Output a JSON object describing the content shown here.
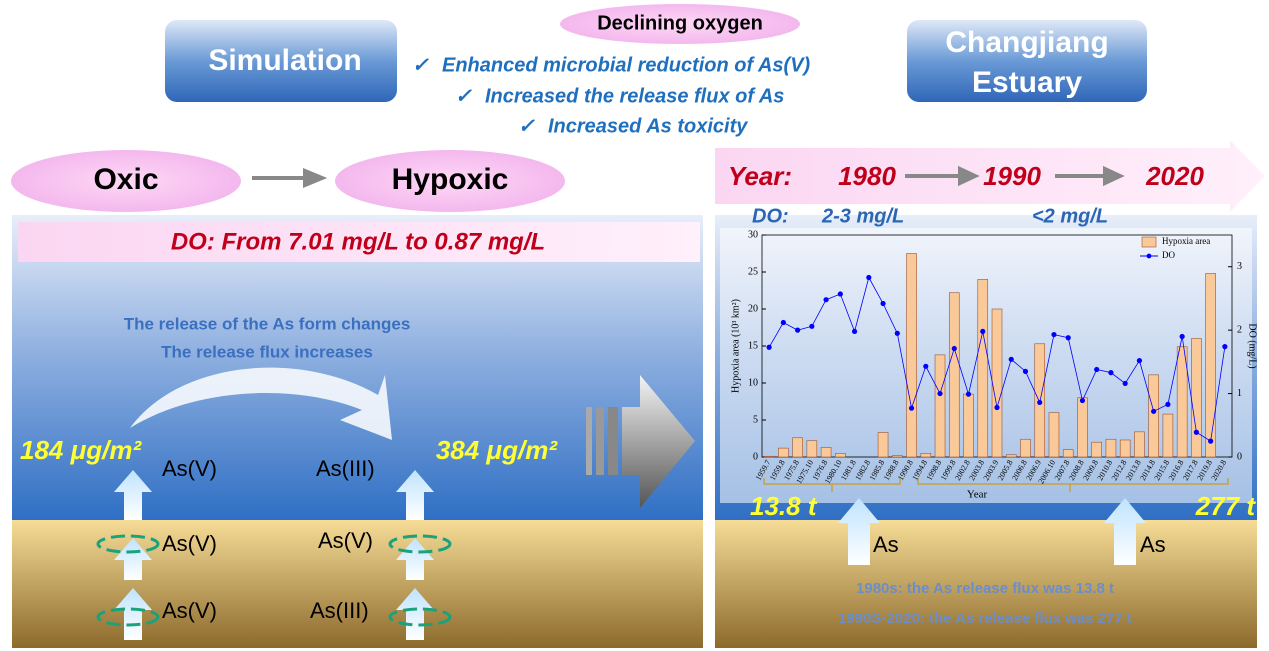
{
  "header": {
    "center_title": "Declining oxygen",
    "left_box": "Simulation",
    "right_box": [
      "Changjiang",
      "Estuary"
    ],
    "bullet": "✓",
    "findings": [
      "Enhanced microbial reduction of As(V)",
      "Increased the release flux of As",
      "Increased As toxicity"
    ]
  },
  "left": {
    "from": "Oxic",
    "to": "Hypoxic",
    "do_range": "DO: From 7.01 mg/L to 0.87 mg/L",
    "notes": [
      "The release of the As form changes",
      "The release flux increases"
    ],
    "flux_oxic": "184 μg/m²",
    "flux_hypoxic": "384 μg/m²",
    "water_species": [
      "As(V)",
      "As(III)"
    ],
    "sediment_species": [
      [
        "As(V)",
        "As(V)"
      ],
      [
        "As(V)",
        "As(III)"
      ]
    ]
  },
  "right": {
    "timeline": {
      "label": "Year:",
      "years": [
        "1980",
        "1990",
        "2020"
      ]
    },
    "do_label": "DO:",
    "do_values": [
      "2-3 mg/L",
      "<2 mg/L"
    ],
    "flux_1980s": "13.8 t",
    "flux_1990s": "277 t",
    "as_labels": [
      "As",
      "As"
    ],
    "summary": [
      "1980s: the As release flux was 13.8 t",
      "1990S-2020: the As release flux was 277 t"
    ]
  },
  "chart_data": {
    "type": "combo",
    "xlabel": "Year",
    "ylabel": "Hypoxia area (10³ km²)",
    "y2label": "DO (mg/L)",
    "categories": [
      "1959.7",
      "1959.8",
      "1975.8",
      "1975.10",
      "1976.8",
      "1980.10",
      "1981.8",
      "1982.8",
      "1985.8",
      "1988.8",
      "1990.8",
      "1994.8",
      "1998.8",
      "1999.8",
      "2002.8",
      "2003.8",
      "2003.9",
      "2005.8",
      "2006.8",
      "2006.9",
      "2006.10",
      "2007.8",
      "2008.8",
      "2009.8",
      "2010.8",
      "2012.8",
      "2013.8",
      "2014.8",
      "2015.8",
      "2016.8",
      "2017.8",
      "2019.8",
      "2020.8"
    ],
    "series": [
      {
        "name": "Hypoxia area",
        "type": "bar",
        "color": "#f9c99a",
        "values": [
          0.1,
          1.2,
          2.6,
          2.2,
          1.3,
          0.5,
          0,
          0,
          3.3,
          0.2,
          27.5,
          0.5,
          13.8,
          22.2,
          8.5,
          24,
          20,
          0.3,
          2.4,
          15.3,
          6,
          1,
          8,
          2,
          2.4,
          2.3,
          3.4,
          11.1,
          5.8,
          14.9,
          16,
          24.8,
          null
        ]
      },
      {
        "name": "DO",
        "type": "line",
        "color": "#0000ff",
        "axis": "y2",
        "values": [
          1.73,
          2.12,
          2.0,
          2.06,
          2.48,
          2.57,
          1.98,
          2.83,
          2.42,
          1.95,
          0.77,
          1.43,
          1.0,
          1.71,
          0.99,
          1.98,
          0.78,
          1.54,
          1.35,
          0.86,
          1.93,
          1.88,
          0.89,
          1.38,
          1.33,
          1.16,
          1.52,
          0.72,
          0.83,
          1.9,
          0.39,
          0.25,
          1.74
        ]
      }
    ],
    "ylim": [
      0,
      30
    ],
    "yticks": [
      0,
      5,
      10,
      15,
      20,
      25,
      30
    ],
    "y2lim": [
      0,
      3.5
    ],
    "y2ticks": [
      0,
      1,
      2,
      3
    ],
    "legend": "upper right"
  }
}
